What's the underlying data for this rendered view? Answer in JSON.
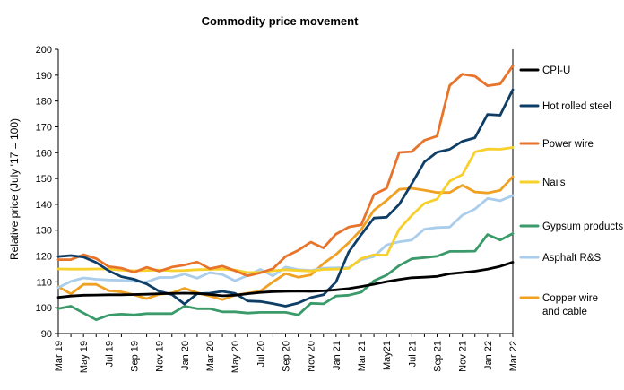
{
  "chart_data": {
    "type": "line",
    "title": "Commodity  price movement",
    "xlabel": "",
    "ylabel": "Relative price (July '17 = 100)",
    "ylim": [
      90,
      200
    ],
    "yticks": [
      90,
      100,
      110,
      120,
      130,
      140,
      150,
      160,
      170,
      180,
      190,
      200
    ],
    "grid": false,
    "legend_position": "right",
    "x": [
      "Mar 19",
      "Apr 19",
      "May 19",
      "Jun 19",
      "Jul 19",
      "Aug 19",
      "Sep 19",
      "Oct 19",
      "Nov 19",
      "Dec 19",
      "Jan 20",
      "Feb 20",
      "Mar 20",
      "Apr 20",
      "May 20",
      "Jun 20",
      "Jul 20",
      "Aug 20",
      "Sep 20",
      "Oct 20",
      "Nov 20",
      "Dec 20",
      "Jan 21",
      "Feb 21",
      "Mar 21",
      "Apr 21",
      "May21",
      "Jun 21",
      "Jul 21",
      "Aug 21",
      "Sep 21",
      "Oct 21",
      "Nov 21",
      "Dec 21",
      "Jan 22",
      "Feb 22",
      "Mar 22"
    ],
    "xtick_labels": [
      "Mar 19",
      "May 19",
      "Jul 19",
      "Sep 19",
      "Nov 19",
      "Jan 20",
      "Mar 20",
      "May 20",
      "Jul 20",
      "Sep 20",
      "Nov 20",
      "Jan 21",
      "Mar 21",
      "May21",
      "Jul 21",
      "Sep 21",
      "Nov 21",
      "Jan 22",
      "Mar 22"
    ],
    "series": [
      {
        "name": "CPI-U",
        "color": "#000000",
        "values": [
          104.0,
          104.5,
          104.8,
          104.9,
          105.0,
          105.0,
          105.1,
          105.2,
          105.4,
          105.5,
          105.6,
          105.5,
          105.1,
          104.6,
          104.8,
          105.4,
          105.9,
          106.2,
          106.3,
          106.4,
          106.3,
          106.5,
          106.9,
          107.4,
          108.2,
          109.1,
          110.1,
          110.9,
          111.6,
          111.8,
          112.1,
          113.1,
          113.6,
          114.1,
          114.9,
          116.0,
          117.6
        ]
      },
      {
        "name": "Hot rolled steel",
        "color": "#0e3d66",
        "values": [
          119.8,
          120.2,
          119.6,
          117.5,
          114.3,
          112.0,
          111.0,
          109.2,
          106.3,
          105.1,
          101.4,
          105.4,
          105.6,
          106.3,
          105.5,
          102.6,
          102.4,
          101.6,
          100.6,
          101.8,
          103.9,
          105.0,
          110.0,
          121.5,
          128.3,
          134.7,
          135.0,
          140.0,
          148.0,
          156.4,
          160.2,
          161.3,
          164.4,
          165.8,
          174.8,
          174.5,
          184.4
        ]
      },
      {
        "name": "Power wire",
        "color": "#e8742b",
        "values": [
          118.6,
          118.6,
          120.5,
          119.0,
          115.9,
          115.3,
          113.7,
          115.6,
          114.1,
          115.7,
          116.5,
          117.7,
          115.1,
          116.1,
          114.3,
          112.3,
          113.5,
          115.1,
          119.8,
          122.2,
          125.4,
          123.1,
          128.5,
          131.2,
          132.1,
          143.8,
          146.2,
          160.1,
          160.4,
          164.8,
          166.4,
          186.0,
          190.4,
          189.6,
          185.9,
          186.6,
          193.6
        ]
      },
      {
        "name": "Nails",
        "color": "#f7d02b",
        "values": [
          115.0,
          114.9,
          114.9,
          115.0,
          115.0,
          114.5,
          114.3,
          114.4,
          114.6,
          114.3,
          114.4,
          114.7,
          114.8,
          114.9,
          114.6,
          113.6,
          113.7,
          114.3,
          114.7,
          114.4,
          114.2,
          114.8,
          114.9,
          115.2,
          119.0,
          120.5,
          120.3,
          130.4,
          135.7,
          140.4,
          142.0,
          149.0,
          151.5,
          160.3,
          161.4,
          161.3,
          162.0
        ]
      },
      {
        "name": "Gypsum products",
        "color": "#3a9a6a",
        "values": [
          99.6,
          100.6,
          97.9,
          95.3,
          97.1,
          97.5,
          97.2,
          97.7,
          97.7,
          97.7,
          100.6,
          99.6,
          99.6,
          98.4,
          98.4,
          97.9,
          98.2,
          98.2,
          98.2,
          97.2,
          101.7,
          101.5,
          104.5,
          104.8,
          106.0,
          110.4,
          112.6,
          116.3,
          118.9,
          119.4,
          119.9,
          121.8,
          121.8,
          121.9,
          128.3,
          126.2,
          128.7
        ]
      },
      {
        "name": "Asphalt R&S",
        "color": "#a9cdeb",
        "values": [
          107.8,
          110.2,
          111.5,
          111.0,
          110.7,
          110.6,
          110.2,
          110.0,
          111.7,
          111.7,
          113.0,
          111.4,
          113.6,
          112.8,
          110.4,
          112.5,
          114.8,
          112.3,
          115.7,
          114.7,
          114.4,
          115.3,
          115.4,
          115.5,
          118.6,
          119.8,
          124.3,
          125.5,
          126.2,
          130.4,
          131.0,
          131.2,
          135.8,
          138.2,
          142.3,
          141.4,
          143.4
        ]
      },
      {
        "name": "Copper wire\nand cable",
        "color": "#f0a022",
        "values": [
          108.1,
          105.3,
          109.0,
          109.0,
          106.6,
          106.1,
          105.0,
          103.5,
          105.2,
          105.7,
          107.5,
          105.8,
          104.5,
          103.1,
          104.9,
          105.6,
          106.4,
          110.0,
          113.2,
          111.8,
          112.7,
          117.1,
          120.6,
          125.1,
          130.3,
          137.7,
          141.5,
          145.8,
          146.2,
          145.5,
          144.6,
          144.6,
          147.4,
          144.8,
          144.4,
          145.4,
          150.7
        ]
      }
    ]
  }
}
